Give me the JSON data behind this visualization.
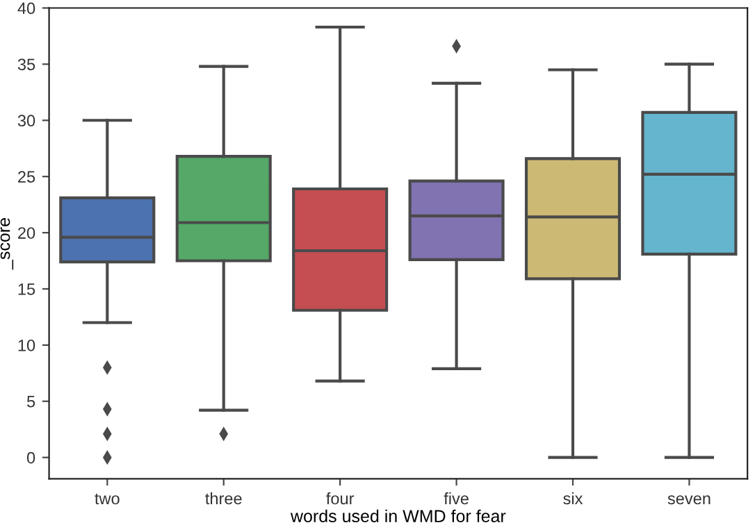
{
  "chart_data": {
    "type": "box",
    "xlabel": "words used in WMD for fear",
    "ylabel": "_score",
    "categories": [
      "two",
      "three",
      "four",
      "five",
      "six",
      "seven"
    ],
    "colors": [
      "#4c72b0",
      "#55a868",
      "#c44e52",
      "#8172b2",
      "#ccb974",
      "#64b5cd"
    ],
    "boxes": [
      {
        "low": 12.0,
        "q1": 17.4,
        "median": 19.6,
        "q3": 23.1,
        "high": 30.0,
        "outliers": [
          8.0,
          4.3,
          2.1,
          0.0
        ]
      },
      {
        "low": 4.2,
        "q1": 17.5,
        "median": 20.9,
        "q3": 26.8,
        "high": 34.8,
        "outliers": [
          2.1
        ]
      },
      {
        "low": 6.8,
        "q1": 13.1,
        "median": 18.4,
        "q3": 23.9,
        "high": 38.3
      },
      {
        "low": 7.9,
        "q1": 17.6,
        "median": 21.5,
        "q3": 24.6,
        "high": 33.3,
        "outliers": [
          36.6
        ]
      },
      {
        "low": 0.0,
        "q1": 15.9,
        "median": 21.4,
        "q3": 26.6,
        "high": 34.5
      },
      {
        "low": 0.0,
        "q1": 18.1,
        "median": 25.2,
        "q3": 30.7,
        "high": 35.0
      }
    ],
    "ylim": [
      -1.9,
      40
    ],
    "yticks": [
      0,
      5,
      10,
      15,
      20,
      25,
      30,
      35,
      40
    ],
    "grid": false,
    "legend": false
  }
}
